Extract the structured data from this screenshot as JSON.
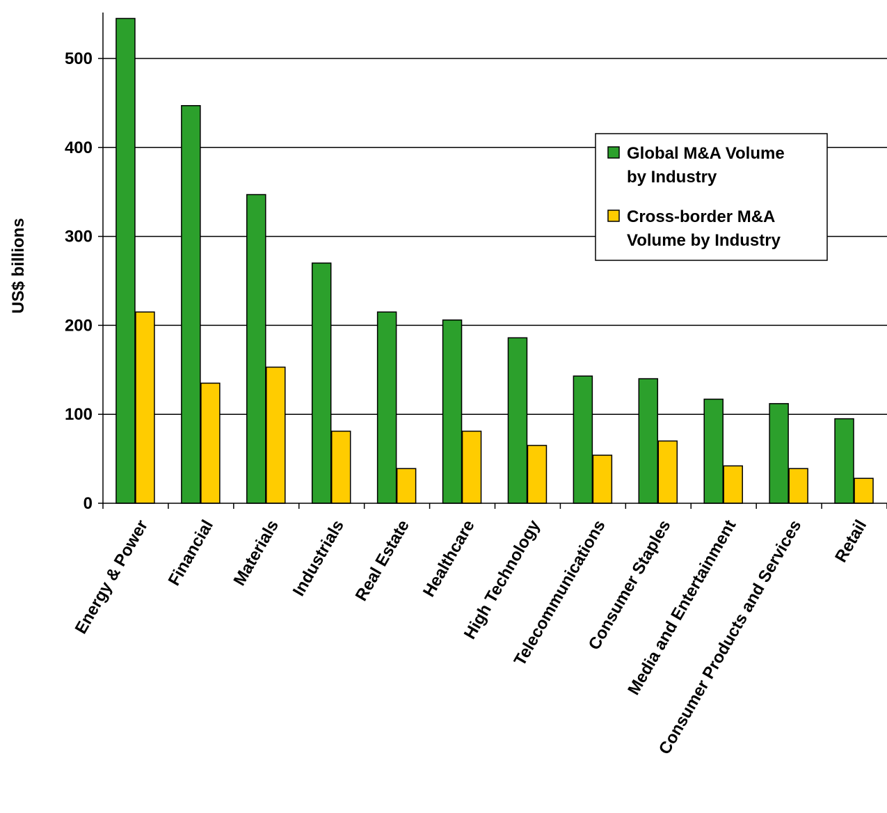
{
  "chart_data": {
    "type": "bar",
    "ylabel": "US$ billions",
    "ylim": [
      0,
      550
    ],
    "yticks": [
      0,
      100,
      200,
      300,
      400,
      500
    ],
    "grid": true,
    "legend_position": "upper-right",
    "categories": [
      "Energy & Power",
      "Financial",
      "Materials",
      "Industrials",
      "Real Estate",
      "Healthcare",
      "High Technology",
      "Telecommunications",
      "Consumer Staples",
      "Media and Entertainment",
      "Consumer Products and Services",
      "Retail"
    ],
    "series": [
      {
        "name": "Global M&A Volume by Industry",
        "legend_lines": [
          "Global M&A Volume",
          "by Industry"
        ],
        "color": "#2ca02c",
        "values": [
          545,
          447,
          347,
          270,
          215,
          206,
          186,
          143,
          140,
          117,
          112,
          95
        ]
      },
      {
        "name": "Cross-border M&A Volume by Industry",
        "legend_lines": [
          "Cross-border M&A",
          "Volume by Industry"
        ],
        "color": "#ffcc00",
        "values": [
          215,
          135,
          153,
          81,
          39,
          81,
          65,
          54,
          70,
          42,
          39,
          28
        ]
      }
    ]
  }
}
